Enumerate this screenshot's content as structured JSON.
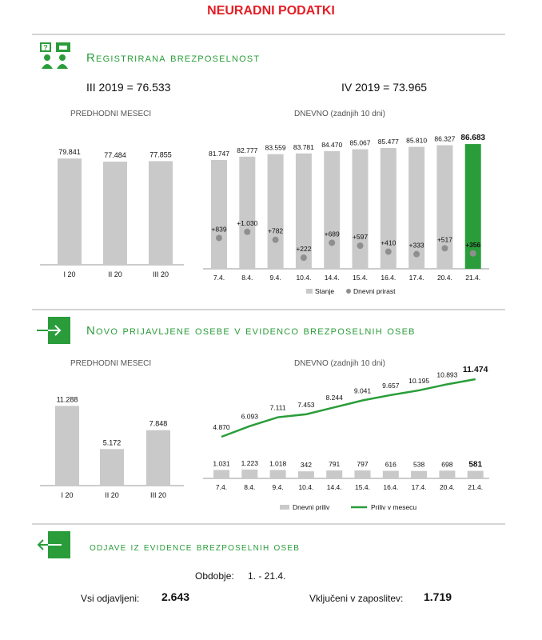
{
  "title": "NEURADNI PODATKI",
  "colors": {
    "green": "#2a9d3a",
    "grey": "#c9c9c9",
    "dot": "#8f8f8f",
    "red": "#e41e26"
  },
  "icons": [
    "people-chat-icon",
    "arrow-in-icon",
    "arrow-out-icon"
  ],
  "section1": {
    "title": "Registrirana brezposelnost",
    "stat_left": "III 2019 = 76.533",
    "stat_right": "IV 2019 = 73.965",
    "sub_left": "PREDHODNI MESECI",
    "sub_right": "DNEVNO (zadnjih 10 dni)"
  },
  "section2": {
    "title": "Novo prijavljene osebe v evidenco brezposelnih oseb",
    "sub_left": "PREDHODNI MESECI",
    "sub_right": "DNEVNO (zadnjih 10 dni)"
  },
  "section3": {
    "title": "odjave iz evidence brezposelnih oseb",
    "period_label": "Obdobje:",
    "period_value": "1. - 21.4.",
    "total_label": "Vsi odjavljeni:",
    "total_value": "2.643",
    "employed_label": "Vključeni v zaposlitev:",
    "employed_value": "1.719"
  },
  "chart_data": [
    {
      "type": "bar",
      "categories": [
        "I 20",
        "II 20",
        "III 20"
      ],
      "values": [
        79841,
        77484,
        77855
      ],
      "value_labels": [
        "79.841",
        "77.484",
        "77.855"
      ],
      "ylim": [
        0,
        100000
      ]
    },
    {
      "type": "bar",
      "categories": [
        "7.4.",
        "8.4.",
        "9.4.",
        "10.4.",
        "14.4.",
        "15.4.",
        "16.4.",
        "17.4.",
        "20.4.",
        "21.4."
      ],
      "series": [
        {
          "name": "Stanje",
          "type": "bar",
          "values": [
            81747,
            82777,
            83559,
            83781,
            84470,
            85067,
            85477,
            85810,
            86327,
            86683
          ],
          "labels": [
            "81.747",
            "82.777",
            "83.559",
            "83.781",
            "84.470",
            "85.067",
            "85.477",
            "85.810",
            "86.327",
            "86.683"
          ]
        },
        {
          "name": "Dnevni prirast",
          "type": "scatter",
          "values": [
            839,
            1030,
            782,
            222,
            689,
            597,
            410,
            333,
            517,
            356
          ],
          "labels": [
            "+839",
            "+1.030",
            "+782",
            "+222",
            "+689",
            "+597",
            "+410",
            "+333",
            "+517",
            "+356"
          ]
        }
      ],
      "highlight_last": true,
      "legend": "bottom"
    },
    {
      "type": "bar",
      "categories": [
        "I 20",
        "II 20",
        "III 20"
      ],
      "values": [
        11288,
        5172,
        7848
      ],
      "value_labels": [
        "11.288",
        "5.172",
        "7.848"
      ],
      "ylim": [
        0,
        14000
      ]
    },
    {
      "type": "line",
      "categories": [
        "7.4.",
        "8.4.",
        "9.4.",
        "10.4.",
        "14.4.",
        "15.4.",
        "16.4.",
        "17.4.",
        "20.4.",
        "21.4."
      ],
      "series": [
        {
          "name": "Dnevni priliv",
          "type": "bar",
          "values": [
            1031,
            1223,
            1018,
            342,
            791,
            797,
            616,
            538,
            698,
            581
          ],
          "labels": [
            "1.031",
            "1.223",
            "1.018",
            "342",
            "791",
            "797",
            "616",
            "538",
            "698",
            "581"
          ]
        },
        {
          "name": "Priliv v mesecu",
          "type": "line",
          "values": [
            4870,
            6093,
            7111,
            7453,
            8244,
            9041,
            9657,
            10195,
            10893,
            11474
          ],
          "labels": [
            "4.870",
            "6.093",
            "7.111",
            "7.453",
            "8.244",
            "9.041",
            "9.657",
            "10.195",
            "10.893",
            "11.474"
          ]
        }
      ],
      "legend": "bottom"
    }
  ]
}
